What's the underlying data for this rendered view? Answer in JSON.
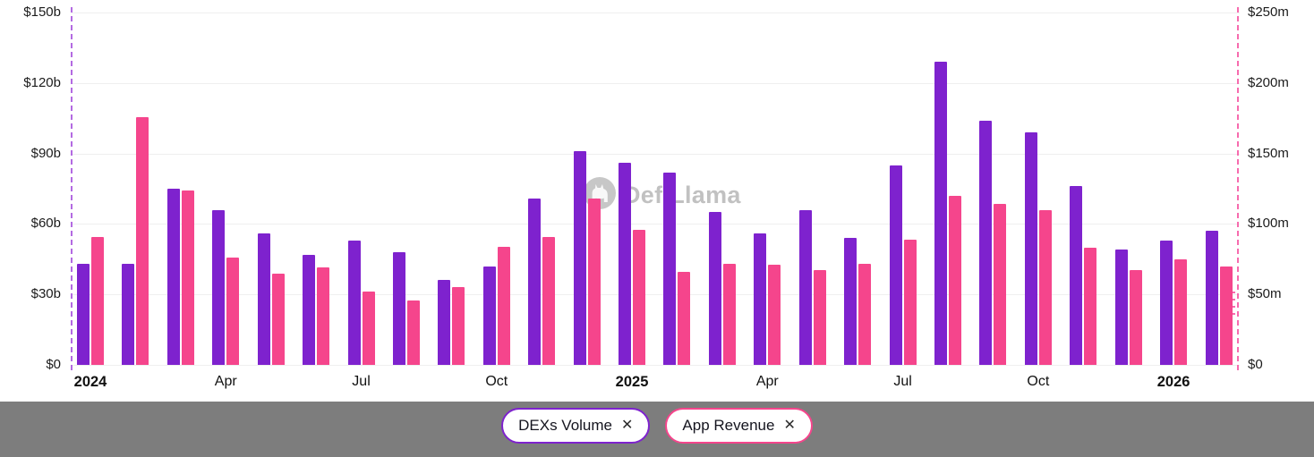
{
  "watermark": {
    "text": "DefiLlama"
  },
  "legend": [
    {
      "label": "DEXs Volume",
      "color": "#7e22ce",
      "close_icon": "✕"
    },
    {
      "label": "App Revenue",
      "color": "#f5458c",
      "close_icon": "✕"
    }
  ],
  "colors": {
    "purple_bar": "#7e22ce",
    "pink_bar": "#f5458c",
    "left_dashed_line": "#b36ae2",
    "right_dashed_line": "#f76bae",
    "gridline": "#efefef",
    "axis_text": "#1b1b1b",
    "bottom_bar": "#7d7d7d",
    "watermark_gray": "#8f8f8f"
  },
  "chart_data": {
    "type": "bar",
    "title": "",
    "grid": true,
    "legend_position": "bottom",
    "months": [
      "2024-01",
      "2024-02",
      "2024-03",
      "2024-04",
      "2024-05",
      "2024-06",
      "2024-07",
      "2024-08",
      "2024-09",
      "2024-10",
      "2024-11",
      "2024-12",
      "2025-01",
      "2025-02",
      "2025-03",
      "2025-04",
      "2025-05",
      "2025-06",
      "2025-07",
      "2025-08",
      "2025-09",
      "2025-10",
      "2025-11",
      "2025-12",
      "2026-01",
      "2026-02"
    ],
    "x_tick_labels": [
      {
        "index": 0,
        "label": "2024",
        "bold": true
      },
      {
        "index": 3,
        "label": "Apr",
        "bold": false
      },
      {
        "index": 6,
        "label": "Jul",
        "bold": false
      },
      {
        "index": 9,
        "label": "Oct",
        "bold": false
      },
      {
        "index": 12,
        "label": "2025",
        "bold": true
      },
      {
        "index": 15,
        "label": "Apr",
        "bold": false
      },
      {
        "index": 18,
        "label": "Jul",
        "bold": false
      },
      {
        "index": 21,
        "label": "Oct",
        "bold": false
      },
      {
        "index": 24,
        "label": "2026",
        "bold": true
      }
    ],
    "left_axis": {
      "ticks": [
        "$0",
        "$30b",
        "$60b",
        "$90b",
        "$120b",
        "$150b"
      ],
      "min": 0,
      "max": 150,
      "unit": "billion USD"
    },
    "right_axis": {
      "ticks": [
        "$0",
        "$50m",
        "$100m",
        "$150m",
        "$200m",
        "$250m"
      ],
      "min": 0,
      "max": 250,
      "unit": "million USD"
    },
    "series": [
      {
        "name": "DEXs Volume",
        "axis": "left",
        "color": "#7e22ce",
        "unit": "billion USD",
        "values": [
          43,
          43,
          75,
          66,
          56,
          47,
          53,
          48,
          36,
          42,
          71,
          91,
          86,
          82,
          65,
          56,
          66,
          54,
          85,
          129,
          104,
          99,
          76,
          49,
          53,
          57
        ]
      },
      {
        "name": "App Revenue",
        "axis": "right",
        "color": "#f5458c",
        "unit": "million USD",
        "values": [
          91,
          176,
          124,
          76,
          65,
          69,
          52,
          46,
          55,
          84,
          91,
          118,
          96,
          66,
          72,
          71,
          67,
          72,
          89,
          120,
          114,
          110,
          83,
          67,
          75,
          70
        ]
      }
    ]
  }
}
